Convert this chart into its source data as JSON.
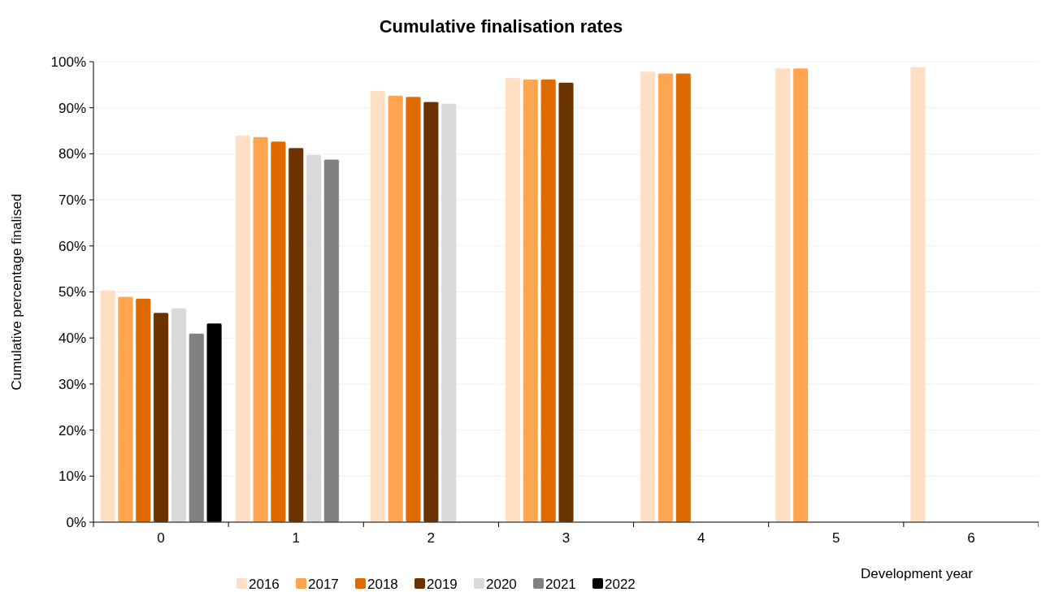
{
  "chart_data": {
    "type": "bar",
    "title": "Cumulative finalisation rates",
    "xlabel": "Development year",
    "ylabel": "Cumulative percentage finalised",
    "categories": [
      "0",
      "1",
      "2",
      "3",
      "4",
      "5",
      "6"
    ],
    "series": [
      {
        "name": "2016",
        "color": "#ffdfc4",
        "values": [
          50.4,
          84.0,
          93.7,
          96.5,
          97.9,
          98.6,
          98.9
        ]
      },
      {
        "name": "2017",
        "color": "#ffa54f",
        "values": [
          49.0,
          83.7,
          92.7,
          96.2,
          97.5,
          98.6,
          null
        ]
      },
      {
        "name": "2018",
        "color": "#de6a00",
        "values": [
          48.6,
          82.7,
          92.4,
          96.2,
          97.5,
          null,
          null
        ]
      },
      {
        "name": "2019",
        "color": "#6b3300",
        "values": [
          45.5,
          81.3,
          91.3,
          95.5,
          null,
          null,
          null
        ]
      },
      {
        "name": "2020",
        "color": "#d9d9d9",
        "values": [
          46.5,
          79.8,
          90.9,
          null,
          null,
          null,
          null
        ]
      },
      {
        "name": "2021",
        "color": "#808080",
        "values": [
          41.0,
          78.8,
          null,
          null,
          null,
          null,
          null
        ]
      },
      {
        "name": "2022",
        "color": "#000000",
        "values": [
          43.2,
          null,
          null,
          null,
          null,
          null,
          null
        ]
      }
    ],
    "ylim": [
      0,
      100
    ],
    "yticks": [
      {
        "value": 0,
        "label": "0%"
      },
      {
        "value": 10,
        "label": "10%"
      },
      {
        "value": 20,
        "label": "20%"
      },
      {
        "value": 30,
        "label": "30%"
      },
      {
        "value": 40,
        "label": "40%"
      },
      {
        "value": 50,
        "label": "50%"
      },
      {
        "value": 60,
        "label": "60%"
      },
      {
        "value": 70,
        "label": "70%"
      },
      {
        "value": 80,
        "label": "80%"
      },
      {
        "value": 90,
        "label": "90%"
      },
      {
        "value": 100,
        "label": "100%"
      }
    ],
    "grid": "y",
    "legend": "bottom"
  }
}
